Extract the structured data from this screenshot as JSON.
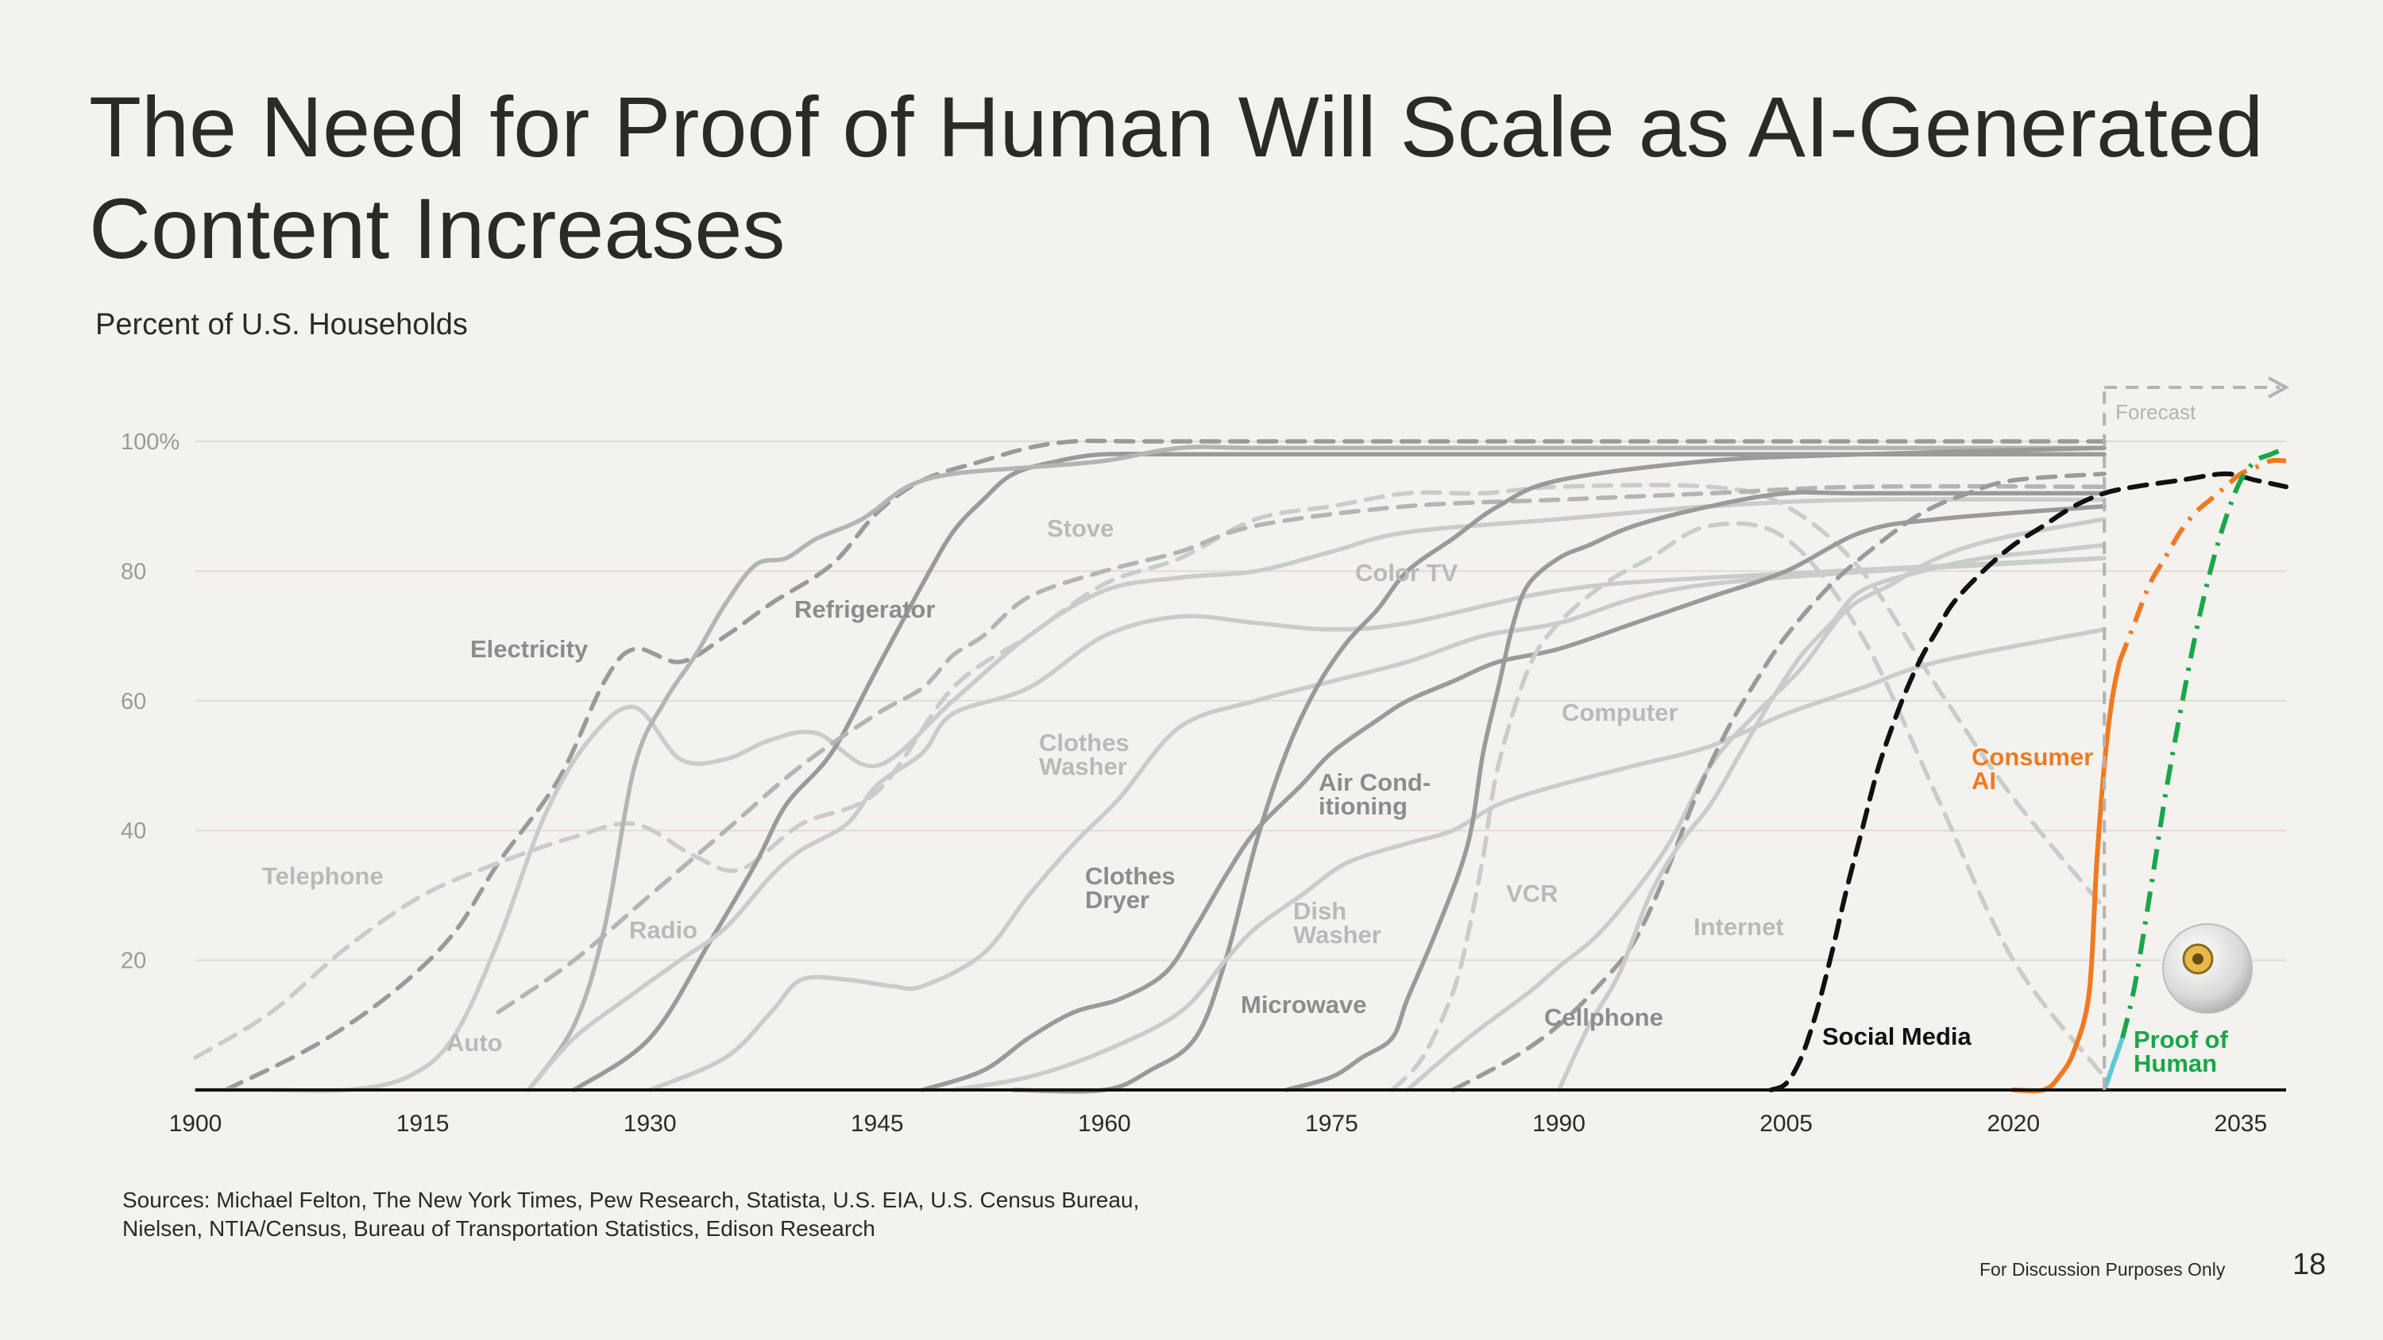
{
  "page": {
    "title": "The Need for Proof of Human Will Scale as AI-Generated Content Increases",
    "subtitle": "Percent of U.S. Households",
    "sources": "Sources: Michael Felton, The New York Times, Pew Research, Statista, U.S. EIA, U.S. Census Bureau, Nielsen, NTIA/Census, Bureau of Transportation Statistics, Edison Research",
    "disclaimer": "For Discussion Purposes Only",
    "page_number": "18"
  },
  "chart_data": {
    "type": "line",
    "title": "The Need for Proof of Human Will Scale as AI-Generated Content Increases",
    "ylabel": "Percent of U.S. Households",
    "xlabel": "",
    "xlim": [
      1900,
      2038
    ],
    "ylim": [
      0,
      100
    ],
    "x_ticks": [
      "1900",
      "1915",
      "1930",
      "1945",
      "1960",
      "1975",
      "1990",
      "2005",
      "2020",
      "2035"
    ],
    "x_tick_values": [
      1900,
      1915,
      1930,
      1945,
      1960,
      1975,
      1990,
      2005,
      2020,
      2035
    ],
    "y_ticks": [
      "20",
      "40",
      "60",
      "80",
      "100%"
    ],
    "y_tick_values": [
      20,
      40,
      60,
      80,
      100
    ],
    "forecast": {
      "label": "Forecast",
      "start": 2026
    },
    "colors": {
      "dark_gray": "#9a9a98",
      "mid_gray": "#b4b4b2",
      "light_gray": "#cbcbc9",
      "label_dark": "#8c8c8a",
      "label_light": "#b9b9b7",
      "social_media": "#111111",
      "consumer_ai": "#f07a22",
      "proof_of_human": "#1aa64a",
      "proof_of_human_cyan": "#5fc9d6",
      "forecast_line": "#b3b3b1",
      "axis": "#111111",
      "grid": "#e3d9d6"
    },
    "series": [
      {
        "name": "Electricity",
        "style": "dashed",
        "tone": "dark",
        "x": [
          1902,
          1908,
          1913,
          1917,
          1920,
          1924,
          1927,
          1929,
          1932,
          1935,
          1938,
          1942,
          1945,
          1948,
          1952,
          1955,
          1958,
          1962,
          1967,
          1975,
          1990,
          2000,
          2015,
          2026
        ],
        "y": [
          0,
          7,
          15,
          24,
          35,
          48,
          63,
          68,
          66,
          70,
          75,
          81,
          89,
          94,
          97,
          99,
          100,
          100,
          100,
          100,
          100,
          100,
          100,
          100
        ]
      },
      {
        "name": "Telephone",
        "style": "dashed",
        "tone": "light",
        "x": [
          1900,
          1905,
          1910,
          1915,
          1920,
          1925,
          1929,
          1933,
          1936,
          1940,
          1945,
          1950,
          1955,
          1960,
          1965,
          1970,
          1975,
          1980,
          1985,
          1990,
          2000,
          2005,
          2010,
          2015,
          2020,
          2026
        ],
        "y": [
          5,
          12,
          22,
          30,
          35,
          39,
          41,
          36,
          34,
          41,
          46,
          62,
          70,
          78,
          82,
          88,
          90,
          92,
          92,
          93,
          93,
          90,
          80,
          62,
          45,
          28
        ]
      },
      {
        "name": "Auto",
        "style": "solid",
        "tone": "light",
        "x": [
          1900,
          1905,
          1910,
          1914,
          1917,
          1920,
          1923,
          1926,
          1929,
          1932,
          1935,
          1938,
          1941,
          1945,
          1950,
          1955,
          1960,
          1965,
          1970,
          1975,
          1980,
          1990,
          2000,
          2010,
          2026
        ],
        "y": [
          0,
          0,
          0,
          2,
          8,
          23,
          42,
          54,
          59,
          51,
          51,
          54,
          55,
          50,
          60,
          70,
          77,
          79,
          80,
          83,
          86,
          88,
          90,
          91,
          91
        ]
      },
      {
        "name": "Refrigerator",
        "style": "solid",
        "tone": "dark",
        "x": [
          1925,
          1930,
          1934,
          1937,
          1939,
          1942,
          1945,
          1948,
          1950,
          1952,
          1954,
          1957,
          1960,
          1965,
          1975,
          1990,
          2010,
          2026
        ],
        "y": [
          0,
          8,
          23,
          35,
          44,
          52,
          65,
          78,
          86,
          91,
          95,
          97,
          98,
          98,
          98,
          98,
          98,
          98
        ]
      },
      {
        "name": "Radio",
        "style": "solid",
        "tone": "mid",
        "x": [
          1922,
          1925,
          1927,
          1929,
          1931,
          1933,
          1935,
          1937,
          1939,
          1941,
          1944,
          1947,
          1950,
          1955,
          1960,
          1965,
          1970,
          1980,
          1990,
          2000,
          2010,
          2026
        ],
        "y": [
          0,
          10,
          25,
          50,
          60,
          67,
          75,
          81,
          82,
          85,
          88,
          93,
          95,
          96,
          97,
          99,
          99,
          99,
          99,
          99,
          99,
          99
        ]
      },
      {
        "name": "Stove",
        "style": "dashed",
        "tone": "mid",
        "x": [
          1920,
          1925,
          1930,
          1935,
          1940,
          1945,
          1948,
          1950,
          1952,
          1955,
          1960,
          1965,
          1970,
          1980,
          1990,
          2000,
          2010,
          2026
        ],
        "y": [
          12,
          20,
          30,
          40,
          50,
          58,
          62,
          67,
          70,
          76,
          80,
          83,
          87,
          90,
          91,
          92,
          93,
          93
        ]
      },
      {
        "name": "Clothes Washer",
        "style": "solid",
        "tone": "light",
        "x": [
          1922,
          1925,
          1929,
          1932,
          1935,
          1938,
          1940,
          1943,
          1945,
          1948,
          1950,
          1955,
          1960,
          1965,
          1970,
          1975,
          1980,
          1990,
          2000,
          2026
        ],
        "y": [
          0,
          8,
          15,
          20,
          25,
          33,
          37,
          41,
          47,
          52,
          58,
          62,
          70,
          73,
          72,
          71,
          72,
          77,
          79,
          82
        ]
      },
      {
        "name": "Clothes Dryer",
        "style": "solid",
        "tone": "light",
        "x": [
          1930,
          1935,
          1938,
          1940,
          1943,
          1946,
          1948,
          1952,
          1955,
          1958,
          1961,
          1965,
          1970,
          1975,
          1980,
          1985,
          1990,
          2000,
          2026
        ],
        "y": [
          0,
          5,
          12,
          17,
          17,
          16,
          16,
          21,
          30,
          38,
          45,
          56,
          60,
          63,
          66,
          70,
          72,
          78,
          82
        ]
      },
      {
        "name": "Color TV",
        "style": "solid",
        "tone": "dark",
        "x": [
          1954,
          1960,
          1963,
          1966,
          1968,
          1970,
          1972,
          1974,
          1976,
          1978,
          1980,
          1983,
          1986,
          1990,
          2000,
          2010,
          2026
        ],
        "y": [
          0,
          0,
          3,
          8,
          20,
          38,
          52,
          62,
          69,
          74,
          80,
          85,
          90,
          94,
          97,
          98,
          99
        ]
      },
      {
        "name": "Air Conditioning",
        "style": "solid",
        "tone": "dark",
        "x": [
          1948,
          1952,
          1955,
          1958,
          1961,
          1964,
          1966,
          1968,
          1970,
          1973,
          1975,
          1978,
          1980,
          1983,
          1986,
          1990,
          1995,
          2000,
          2005,
          2010,
          2015,
          2026
        ],
        "y": [
          0,
          3,
          8,
          12,
          14,
          18,
          25,
          33,
          40,
          47,
          52,
          57,
          60,
          63,
          66,
          68,
          72,
          76,
          80,
          86,
          88,
          90
        ]
      },
      {
        "name": "Dish Washer",
        "style": "solid",
        "tone": "light",
        "x": [
          1950,
          1955,
          1960,
          1965,
          1968,
          1970,
          1973,
          1976,
          1980,
          1983,
          1986,
          1990,
          1995,
          2000,
          2005,
          2010,
          2015,
          2026
        ],
        "y": [
          0,
          2,
          6,
          12,
          20,
          25,
          30,
          35,
          38,
          40,
          44,
          47,
          50,
          53,
          58,
          62,
          66,
          71
        ]
      },
      {
        "name": "Microwave",
        "style": "solid",
        "tone": "dark",
        "x": [
          1972,
          1975,
          1977,
          1979,
          1980,
          1982,
          1984,
          1985,
          1986,
          1987,
          1988,
          1990,
          1992,
          1995,
          2000,
          2005,
          2010,
          2026
        ],
        "y": [
          0,
          2,
          5,
          8,
          14,
          25,
          38,
          52,
          62,
          72,
          78,
          82,
          84,
          87,
          90,
          92,
          92,
          92
        ]
      },
      {
        "name": "VCR",
        "style": "dashed",
        "tone": "light",
        "x": [
          1979,
          1981,
          1983,
          1984,
          1985,
          1986,
          1988,
          1990,
          1993,
          1996,
          2000,
          2005,
          2010,
          2015,
          2020,
          2026
        ],
        "y": [
          0,
          5,
          15,
          24,
          36,
          50,
          65,
          72,
          78,
          82,
          87,
          85,
          70,
          45,
          20,
          2
        ]
      },
      {
        "name": "Computer",
        "style": "solid",
        "tone": "light",
        "x": [
          1980,
          1984,
          1988,
          1990,
          1993,
          1997,
          2000,
          2003,
          2006,
          2009,
          2012,
          2015,
          2019,
          2026
        ],
        "y": [
          0,
          8,
          15,
          19,
          25,
          37,
          50,
          58,
          65,
          74,
          78,
          82,
          85,
          88
        ]
      },
      {
        "name": "Cellphone",
        "style": "dashed",
        "tone": "dark",
        "x": [
          1983,
          1987,
          1990,
          1993,
          1995,
          1997,
          1999,
          2001,
          2003,
          2005,
          2008,
          2011,
          2014,
          2017,
          2020,
          2026
        ],
        "y": [
          0,
          5,
          10,
          17,
          23,
          33,
          45,
          55,
          63,
          70,
          78,
          84,
          89,
          92,
          94,
          95
        ]
      },
      {
        "name": "Internet",
        "style": "solid",
        "tone": "light",
        "x": [
          1990,
          1992,
          1994,
          1996,
          1998,
          2000,
          2002,
          2004,
          2006,
          2008,
          2010,
          2014,
          2018,
          2022,
          2026
        ],
        "y": [
          0,
          10,
          18,
          30,
          38,
          44,
          52,
          60,
          67,
          72,
          77,
          80,
          82,
          83,
          84
        ]
      },
      {
        "name": "Social Media",
        "style": "dashed",
        "tone": "black",
        "x": [
          2004,
          2005,
          2006,
          2007,
          2008,
          2009,
          2010,
          2011,
          2012,
          2013,
          2014,
          2015,
          2016,
          2018,
          2020,
          2022,
          2024,
          2026,
          2028,
          2031,
          2034,
          2036,
          2038
        ],
        "y": [
          0,
          1,
          5,
          12,
          21,
          31,
          40,
          49,
          56,
          62,
          67,
          71,
          75,
          80,
          84,
          87,
          90,
          92,
          93,
          94,
          95,
          94,
          93
        ]
      },
      {
        "name": "Consumer AI",
        "style": "solid-then-dashdot",
        "tone": "orange",
        "x": [
          2020,
          2022,
          2023,
          2024,
          2025,
          2025.5,
          2026,
          2026.5,
          2027,
          2028,
          2029,
          2030,
          2031,
          2032,
          2033,
          2034,
          2035,
          2036,
          2037,
          2038
        ],
        "y": [
          0,
          0,
          2,
          6,
          15,
          35,
          50,
          60,
          66,
          72,
          78,
          82,
          86,
          89,
          91,
          93,
          95,
          96,
          97,
          97
        ],
        "forecast_from": 2027
      },
      {
        "name": "Proof of Human",
        "style": "dashdot",
        "tone": "green",
        "x": [
          2026,
          2026.6,
          2027.2,
          2028,
          2029,
          2030,
          2031,
          2032,
          2033,
          2034,
          2035,
          2036,
          2037,
          2038
        ],
        "y": [
          0,
          4,
          8,
          16,
          30,
          45,
          58,
          70,
          80,
          88,
          94,
          97,
          98,
          99
        ]
      }
    ],
    "labels": [
      {
        "text": "Electricity",
        "tone": "dark"
      },
      {
        "text": "Refrigerator",
        "tone": "dark"
      },
      {
        "text": "Stove",
        "tone": "light"
      },
      {
        "text": "Color TV",
        "tone": "light"
      },
      {
        "text": "Telephone",
        "tone": "light"
      },
      {
        "text": "Radio",
        "tone": "light"
      },
      {
        "text": "Auto",
        "tone": "light"
      },
      {
        "text": "Clothes Washer",
        "tone": "light"
      },
      {
        "text": "Clothes Dryer",
        "tone": "dark"
      },
      {
        "text": "Air Cond-itioning",
        "tone": "dark"
      },
      {
        "text": "Dish Washer",
        "tone": "light"
      },
      {
        "text": "Microwave",
        "tone": "dark"
      },
      {
        "text": "Computer",
        "tone": "light"
      },
      {
        "text": "VCR",
        "tone": "light"
      },
      {
        "text": "Cellphone",
        "tone": "dark"
      },
      {
        "text": "Internet",
        "tone": "light"
      },
      {
        "text": "Social Media",
        "tone": "black"
      },
      {
        "text": "Consumer AI",
        "tone": "orange"
      },
      {
        "text": "Proof of Human",
        "tone": "green"
      }
    ],
    "label_lines": {
      "Clothes Washer": [
        "Clothes",
        "Washer"
      ],
      "Clothes Dryer": [
        "Clothes",
        "Dryer"
      ],
      "Air Cond-itioning": [
        "Air Cond-",
        "itioning"
      ],
      "Dish Washer": [
        "Dish",
        "Washer"
      ],
      "Consumer AI": [
        "Consumer",
        "AI"
      ],
      "Proof of Human": [
        "Proof of",
        "Human"
      ]
    }
  }
}
